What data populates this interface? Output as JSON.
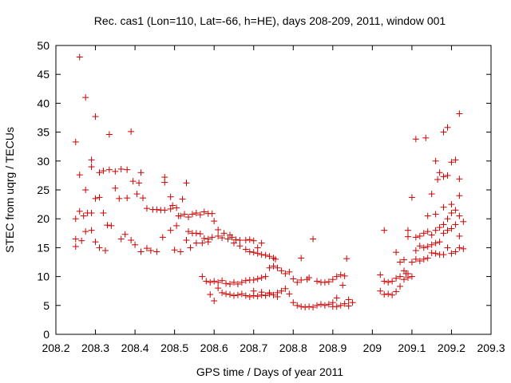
{
  "chart_data": {
    "type": "scatter",
    "title": "Rec. cas1 (Lon=110, Lat=-66, h=HE), days 208-209, 2011, window 001",
    "xlabel": "GPS time / Days of year 2011",
    "ylabel": "STEC from uqrg / TECUs",
    "xlim": [
      208.2,
      209.3
    ],
    "ylim": [
      0,
      50
    ],
    "xticks": [
      "208.2",
      "208.3",
      "208.4",
      "208.5",
      "208.6",
      "208.7",
      "208.8",
      "208.9",
      "209",
      "209.1",
      "209.2",
      "209.3"
    ],
    "yticks": [
      "0",
      "5",
      "10",
      "15",
      "20",
      "25",
      "30",
      "35",
      "40",
      "45",
      "50"
    ],
    "grid": false,
    "legend": "none",
    "marker": "plus",
    "color": "#cc0000",
    "series": [
      {
        "values": [
          [
            208.25,
            33.3
          ],
          [
            208.26,
            48.0
          ],
          [
            208.275,
            41.0
          ],
          [
            208.29,
            30.2
          ],
          [
            208.3,
            37.7
          ],
          [
            208.335,
            34.6
          ],
          [
            208.39,
            35.1
          ],
          [
            208.25,
            20.0
          ],
          [
            208.26,
            21.3
          ],
          [
            208.27,
            20.5
          ],
          [
            208.28,
            21.0
          ],
          [
            208.29,
            21.0
          ],
          [
            208.3,
            23.5
          ],
          [
            208.31,
            23.7
          ],
          [
            208.32,
            21.0
          ],
          [
            208.26,
            27.6
          ],
          [
            208.275,
            25.0
          ],
          [
            208.29,
            29.0
          ],
          [
            208.31,
            28.0
          ],
          [
            208.32,
            28.3
          ],
          [
            208.335,
            28.5
          ],
          [
            208.35,
            28.2
          ],
          [
            208.365,
            28.6
          ],
          [
            208.38,
            28.5
          ],
          [
            208.41,
            26.2
          ],
          [
            208.415,
            28.0
          ],
          [
            208.36,
            23.5
          ],
          [
            208.38,
            23.6
          ],
          [
            208.395,
            26.5
          ],
          [
            208.405,
            24.3
          ],
          [
            208.42,
            23.6
          ],
          [
            208.25,
            16.5
          ],
          [
            208.25,
            15.2
          ],
          [
            208.265,
            16.2
          ],
          [
            208.275,
            17.8
          ],
          [
            208.29,
            18.0
          ],
          [
            208.3,
            16.0
          ],
          [
            208.31,
            15.0
          ],
          [
            208.325,
            14.5
          ],
          [
            208.33,
            18.9
          ],
          [
            208.34,
            18.8
          ],
          [
            208.35,
            25.3
          ],
          [
            208.365,
            16.5
          ],
          [
            208.375,
            17.3
          ],
          [
            208.39,
            16.3
          ],
          [
            208.4,
            15.5
          ],
          [
            208.415,
            14.3
          ],
          [
            208.43,
            14.9
          ],
          [
            208.44,
            14.5
          ],
          [
            208.455,
            14.3
          ],
          [
            208.47,
            16.8
          ],
          [
            208.43,
            21.8
          ],
          [
            208.445,
            21.6
          ],
          [
            208.455,
            21.6
          ],
          [
            208.465,
            21.5
          ],
          [
            208.475,
            21.5
          ],
          [
            208.49,
            21.7
          ],
          [
            208.495,
            22.3
          ],
          [
            208.505,
            21.9
          ],
          [
            208.515,
            20.5
          ],
          [
            208.525,
            20.8
          ],
          [
            208.535,
            20.3
          ],
          [
            208.545,
            20.8
          ],
          [
            208.555,
            21.0
          ],
          [
            208.565,
            20.7
          ],
          [
            208.575,
            21.2
          ],
          [
            208.585,
            20.9
          ],
          [
            208.595,
            20.9
          ],
          [
            208.475,
            27.2
          ],
          [
            208.475,
            26.3
          ],
          [
            208.49,
            23.8
          ],
          [
            208.505,
            18.8
          ],
          [
            208.52,
            23.4
          ],
          [
            208.53,
            26.2
          ],
          [
            208.51,
            20.5
          ],
          [
            208.49,
            18.0
          ],
          [
            208.5,
            14.6
          ],
          [
            208.515,
            14.3
          ],
          [
            208.53,
            16.3
          ],
          [
            208.535,
            17.8
          ],
          [
            208.545,
            17.5
          ],
          [
            208.555,
            17.5
          ],
          [
            208.565,
            17.4
          ],
          [
            208.575,
            16.6
          ],
          [
            208.585,
            16.5
          ],
          [
            208.595,
            16.8
          ],
          [
            208.61,
            17.0
          ],
          [
            208.62,
            16.7
          ],
          [
            208.635,
            16.5
          ],
          [
            208.645,
            16.8
          ],
          [
            208.655,
            16.4
          ],
          [
            208.665,
            16.3
          ],
          [
            208.68,
            16.3
          ],
          [
            208.69,
            16.4
          ],
          [
            208.7,
            16.2
          ],
          [
            208.71,
            15.0
          ],
          [
            208.72,
            15.8
          ],
          [
            208.54,
            15.0
          ],
          [
            208.555,
            15.8
          ],
          [
            208.57,
            15.8
          ],
          [
            208.585,
            16.0
          ],
          [
            208.6,
            19.6
          ],
          [
            208.61,
            18.1
          ],
          [
            208.625,
            17.5
          ],
          [
            208.64,
            17.2
          ],
          [
            208.65,
            15.8
          ],
          [
            208.665,
            15.3
          ],
          [
            208.68,
            14.7
          ],
          [
            208.69,
            14.3
          ],
          [
            208.7,
            14.2
          ],
          [
            208.71,
            14.0
          ],
          [
            208.72,
            13.8
          ],
          [
            208.73,
            13.7
          ],
          [
            208.74,
            13.5
          ],
          [
            208.75,
            13.2
          ],
          [
            208.755,
            13.0
          ],
          [
            208.57,
            10.0
          ],
          [
            208.58,
            9.2
          ],
          [
            208.59,
            9.0
          ],
          [
            208.6,
            9.2
          ],
          [
            208.61,
            9.0
          ],
          [
            208.62,
            9.3
          ],
          [
            208.63,
            8.8
          ],
          [
            208.64,
            8.7
          ],
          [
            208.65,
            9.0
          ],
          [
            208.66,
            8.7
          ],
          [
            208.67,
            9.0
          ],
          [
            208.68,
            9.3
          ],
          [
            208.69,
            9.4
          ],
          [
            208.7,
            9.4
          ],
          [
            208.71,
            9.6
          ],
          [
            208.72,
            9.8
          ],
          [
            208.73,
            10.0
          ],
          [
            208.74,
            11.5
          ],
          [
            208.75,
            11.8
          ],
          [
            208.76,
            11.5
          ],
          [
            208.77,
            11.0
          ],
          [
            208.78,
            10.5
          ],
          [
            208.79,
            10.8
          ],
          [
            208.8,
            9.6
          ],
          [
            208.81,
            9.0
          ],
          [
            208.82,
            9.4
          ],
          [
            208.59,
            6.9
          ],
          [
            208.6,
            5.8
          ],
          [
            208.61,
            8.0
          ],
          [
            208.62,
            7.2
          ],
          [
            208.63,
            7.0
          ],
          [
            208.64,
            6.9
          ],
          [
            208.65,
            6.7
          ],
          [
            208.66,
            6.8
          ],
          [
            208.67,
            7.0
          ],
          [
            208.68,
            6.7
          ],
          [
            208.69,
            6.5
          ],
          [
            208.7,
            6.7
          ],
          [
            208.71,
            6.6
          ],
          [
            208.72,
            6.8
          ],
          [
            208.73,
            6.7
          ],
          [
            208.74,
            7.0
          ],
          [
            208.75,
            6.8
          ],
          [
            208.76,
            7.2
          ],
          [
            208.77,
            7.5
          ],
          [
            208.78,
            7.9
          ],
          [
            208.79,
            7.0
          ],
          [
            208.7,
            7.5
          ],
          [
            208.72,
            7.3
          ],
          [
            208.74,
            7.2
          ],
          [
            208.76,
            6.5
          ],
          [
            208.8,
            5.5
          ],
          [
            208.81,
            5.0
          ],
          [
            208.82,
            4.8
          ],
          [
            208.83,
            4.7
          ],
          [
            208.84,
            4.8
          ],
          [
            208.85,
            4.7
          ],
          [
            208.86,
            5.0
          ],
          [
            208.87,
            5.2
          ],
          [
            208.88,
            5.0
          ],
          [
            208.89,
            5.2
          ],
          [
            208.9,
            4.8
          ],
          [
            208.91,
            4.8
          ],
          [
            208.92,
            5.0
          ],
          [
            208.93,
            5.3
          ],
          [
            208.94,
            4.9
          ],
          [
            208.95,
            5.5
          ],
          [
            208.94,
            6.0
          ],
          [
            208.91,
            6.3
          ],
          [
            208.9,
            5.5
          ],
          [
            208.82,
            13.2
          ],
          [
            208.85,
            16.5
          ],
          [
            208.835,
            9.5
          ],
          [
            208.84,
            9.8
          ],
          [
            208.86,
            9.2
          ],
          [
            208.87,
            9.0
          ],
          [
            208.88,
            9.0
          ],
          [
            208.89,
            9.1
          ],
          [
            208.9,
            9.5
          ],
          [
            208.91,
            10.0
          ],
          [
            208.92,
            10.3
          ],
          [
            208.93,
            10.1
          ],
          [
            208.935,
            13.1
          ],
          [
            208.925,
            8.5
          ],
          [
            209.02,
            10.3
          ],
          [
            209.02,
            7.5
          ],
          [
            209.03,
            6.9
          ],
          [
            209.04,
            7.0
          ],
          [
            209.05,
            6.8
          ],
          [
            209.06,
            7.4
          ],
          [
            209.07,
            8.3
          ],
          [
            209.08,
            9.5
          ],
          [
            209.09,
            9.8
          ],
          [
            209.03,
            9.2
          ],
          [
            209.04,
            9.0
          ],
          [
            209.05,
            9.2
          ],
          [
            209.06,
            9.7
          ],
          [
            209.07,
            10.0
          ],
          [
            209.08,
            11.0
          ],
          [
            209.085,
            10.5
          ],
          [
            209.09,
            10.5
          ],
          [
            209.1,
            10.0
          ],
          [
            209.03,
            18.0
          ],
          [
            209.06,
            14.2
          ],
          [
            209.07,
            12.5
          ],
          [
            209.08,
            12.9
          ],
          [
            209.09,
            18.0
          ],
          [
            209.09,
            16.9
          ],
          [
            209.1,
            23.7
          ],
          [
            209.1,
            12.5
          ],
          [
            209.11,
            13.0
          ],
          [
            209.12,
            12.7
          ],
          [
            209.13,
            13.0
          ],
          [
            209.14,
            13.2
          ],
          [
            209.15,
            14.1
          ],
          [
            209.16,
            14.0
          ],
          [
            209.17,
            13.8
          ],
          [
            209.18,
            13.8
          ],
          [
            209.19,
            15.0
          ],
          [
            209.2,
            14.0
          ],
          [
            209.21,
            14.3
          ],
          [
            209.22,
            15.0
          ],
          [
            209.23,
            14.8
          ],
          [
            209.11,
            14.5
          ],
          [
            209.12,
            15.3
          ],
          [
            209.13,
            15.0
          ],
          [
            209.14,
            15.2
          ],
          [
            209.15,
            15.5
          ],
          [
            209.16,
            15.8
          ],
          [
            209.17,
            16.0
          ],
          [
            209.18,
            17.5
          ],
          [
            209.19,
            18.0
          ],
          [
            209.2,
            18.3
          ],
          [
            209.21,
            19.0
          ],
          [
            209.22,
            17.0
          ],
          [
            209.23,
            19.5
          ],
          [
            209.11,
            16.8
          ],
          [
            209.12,
            17.0
          ],
          [
            209.13,
            17.5
          ],
          [
            209.14,
            17.8
          ],
          [
            209.15,
            17.2
          ],
          [
            209.16,
            18.0
          ],
          [
            209.17,
            18.5
          ],
          [
            209.18,
            19.0
          ],
          [
            209.19,
            20.0
          ],
          [
            209.2,
            21.0
          ],
          [
            209.21,
            21.5
          ],
          [
            209.22,
            20.5
          ],
          [
            209.14,
            20.5
          ],
          [
            209.16,
            20.8
          ],
          [
            209.18,
            22.0
          ],
          [
            209.2,
            22.5
          ],
          [
            209.22,
            24.0
          ],
          [
            209.15,
            24.3
          ],
          [
            209.165,
            26.8
          ],
          [
            209.17,
            28.0
          ],
          [
            209.18,
            27.3
          ],
          [
            209.19,
            27.5
          ],
          [
            209.2,
            29.8
          ],
          [
            209.21,
            30.2
          ],
          [
            209.22,
            26.9
          ],
          [
            209.11,
            33.8
          ],
          [
            209.135,
            34.0
          ],
          [
            209.16,
            30.0
          ],
          [
            209.18,
            35.0
          ],
          [
            209.19,
            35.8
          ],
          [
            209.22,
            38.2
          ]
        ]
      }
    ]
  }
}
